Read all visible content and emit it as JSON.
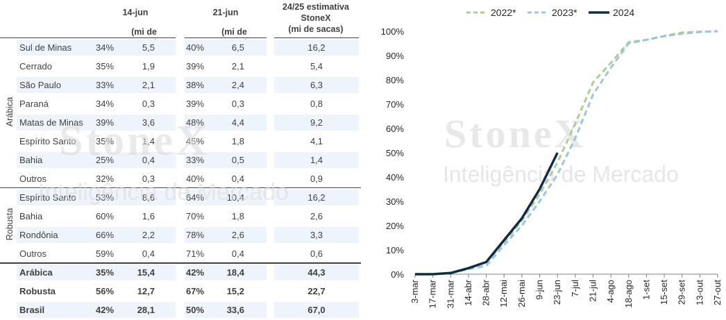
{
  "table": {
    "headers": {
      "col1": [
        "14-jun",
        "(mi de sacas)"
      ],
      "col2": [
        "21-jun",
        "(mi de sacas)"
      ],
      "col3": [
        "24/25 estimativa",
        "StoneX",
        "(mi de sacas)"
      ]
    },
    "group_labels": {
      "arabica": "Arábica",
      "robusta": "Robusta"
    },
    "rows": [
      {
        "region": "Sul de Minas",
        "p1": "34%",
        "v1": "5,5",
        "p2": "40%",
        "v2": "6,5",
        "est": "16,2",
        "shade": true
      },
      {
        "region": "Cerrado",
        "p1": "35%",
        "v1": "1,9",
        "p2": "39%",
        "v2": "2,1",
        "est": "5,4",
        "shade": false
      },
      {
        "region": "São Paulo",
        "p1": "33%",
        "v1": "2,1",
        "p2": "38%",
        "v2": "2,4",
        "est": "6,3",
        "shade": true
      },
      {
        "region": "Paraná",
        "p1": "34%",
        "v1": "0,3",
        "p2": "39%",
        "v2": "0,3",
        "est": "0,8",
        "shade": false
      },
      {
        "region": "Matas de Minas",
        "p1": "39%",
        "v1": "3,6",
        "p2": "48%",
        "v2": "4,4",
        "est": "9,2",
        "shade": true
      },
      {
        "region": "Espírito Santo",
        "p1": "35%",
        "v1": "1,4",
        "p2": "45%",
        "v2": "1,8",
        "est": "4,1",
        "shade": false
      },
      {
        "region": "Bahia",
        "p1": "25%",
        "v1": "0,4",
        "p2": "33%",
        "v2": "0,5",
        "est": "1,4",
        "shade": true
      },
      {
        "region": "Outros",
        "p1": "32%",
        "v1": "0,3",
        "p2": "40%",
        "v2": "0,4",
        "est": "0,9",
        "shade": false
      },
      {
        "region": "Espírito Santo",
        "p1": "53%",
        "v1": "8,6",
        "p2": "64%",
        "v2": "10,4",
        "est": "16,2",
        "shade": true
      },
      {
        "region": "Bahia",
        "p1": "60%",
        "v1": "1,6",
        "p2": "70%",
        "v2": "1,8",
        "est": "2,6",
        "shade": false
      },
      {
        "region": "Rondônia",
        "p1": "66%",
        "v1": "2,2",
        "p2": "78%",
        "v2": "2,6",
        "est": "3,3",
        "shade": true
      },
      {
        "region": "Outros",
        "p1": "59%",
        "v1": "0,4",
        "p2": "71%",
        "v2": "0,4",
        "est": "0,6",
        "shade": false
      }
    ],
    "totals": [
      {
        "region": "Arábica",
        "p1": "35%",
        "v1": "15,4",
        "p2": "42%",
        "v2": "18,4",
        "est": "44,3",
        "shade": true
      },
      {
        "region": "Robusta",
        "p1": "56%",
        "v1": "12,7",
        "p2": "67%",
        "v2": "15,2",
        "est": "22,7",
        "shade": false
      },
      {
        "region": "Brasil",
        "p1": "42%",
        "v1": "28,1",
        "p2": "50%",
        "v2": "33,6",
        "est": "67,0",
        "shade": true
      }
    ]
  },
  "watermark": {
    "brand": "StoneX",
    "tagline": "Inteligência de Mercado"
  },
  "colors": {
    "s2022": "#a9d18e",
    "s2023": "#9dc3e6",
    "s2024": "#0b2d48",
    "shade": "#eef4fb",
    "text": "#404040"
  },
  "chart_data": {
    "type": "line",
    "categories": [
      "3-mar",
      "17-mar",
      "31-mar",
      "14-abr",
      "28-abr",
      "12-mai",
      "26-mai",
      "9-jun",
      "23-jun",
      "7-jul",
      "21-jul",
      "4-ago",
      "18-ago",
      "1-set",
      "15-set",
      "29-set",
      "13-out",
      "27-out"
    ],
    "ylim": [
      0,
      1
    ],
    "yticks": [
      "0%",
      "10%",
      "20%",
      "30%",
      "40%",
      "50%",
      "60%",
      "70%",
      "80%",
      "90%",
      "100%"
    ],
    "legend_position": "top",
    "series": [
      {
        "name": "2022*",
        "style": "dashed",
        "values": [
          0,
          0,
          0.005,
          0.025,
          0.05,
          0.13,
          0.22,
          0.33,
          0.46,
          0.62,
          0.79,
          0.87,
          0.955,
          0.965,
          0.98,
          0.995,
          0.998,
          1.0
        ]
      },
      {
        "name": "2023*",
        "style": "dashed",
        "values": [
          0,
          0,
          0.005,
          0.02,
          0.035,
          0.12,
          0.2,
          0.3,
          0.41,
          0.56,
          0.74,
          0.85,
          0.95,
          0.965,
          0.98,
          0.99,
          0.997,
          1.0
        ]
      },
      {
        "name": "2024",
        "style": "solid",
        "values": [
          0,
          0,
          0.005,
          0.025,
          0.05,
          0.14,
          0.23,
          0.35,
          0.5,
          null,
          null,
          null,
          null,
          null,
          null,
          null,
          null,
          null
        ]
      }
    ]
  }
}
